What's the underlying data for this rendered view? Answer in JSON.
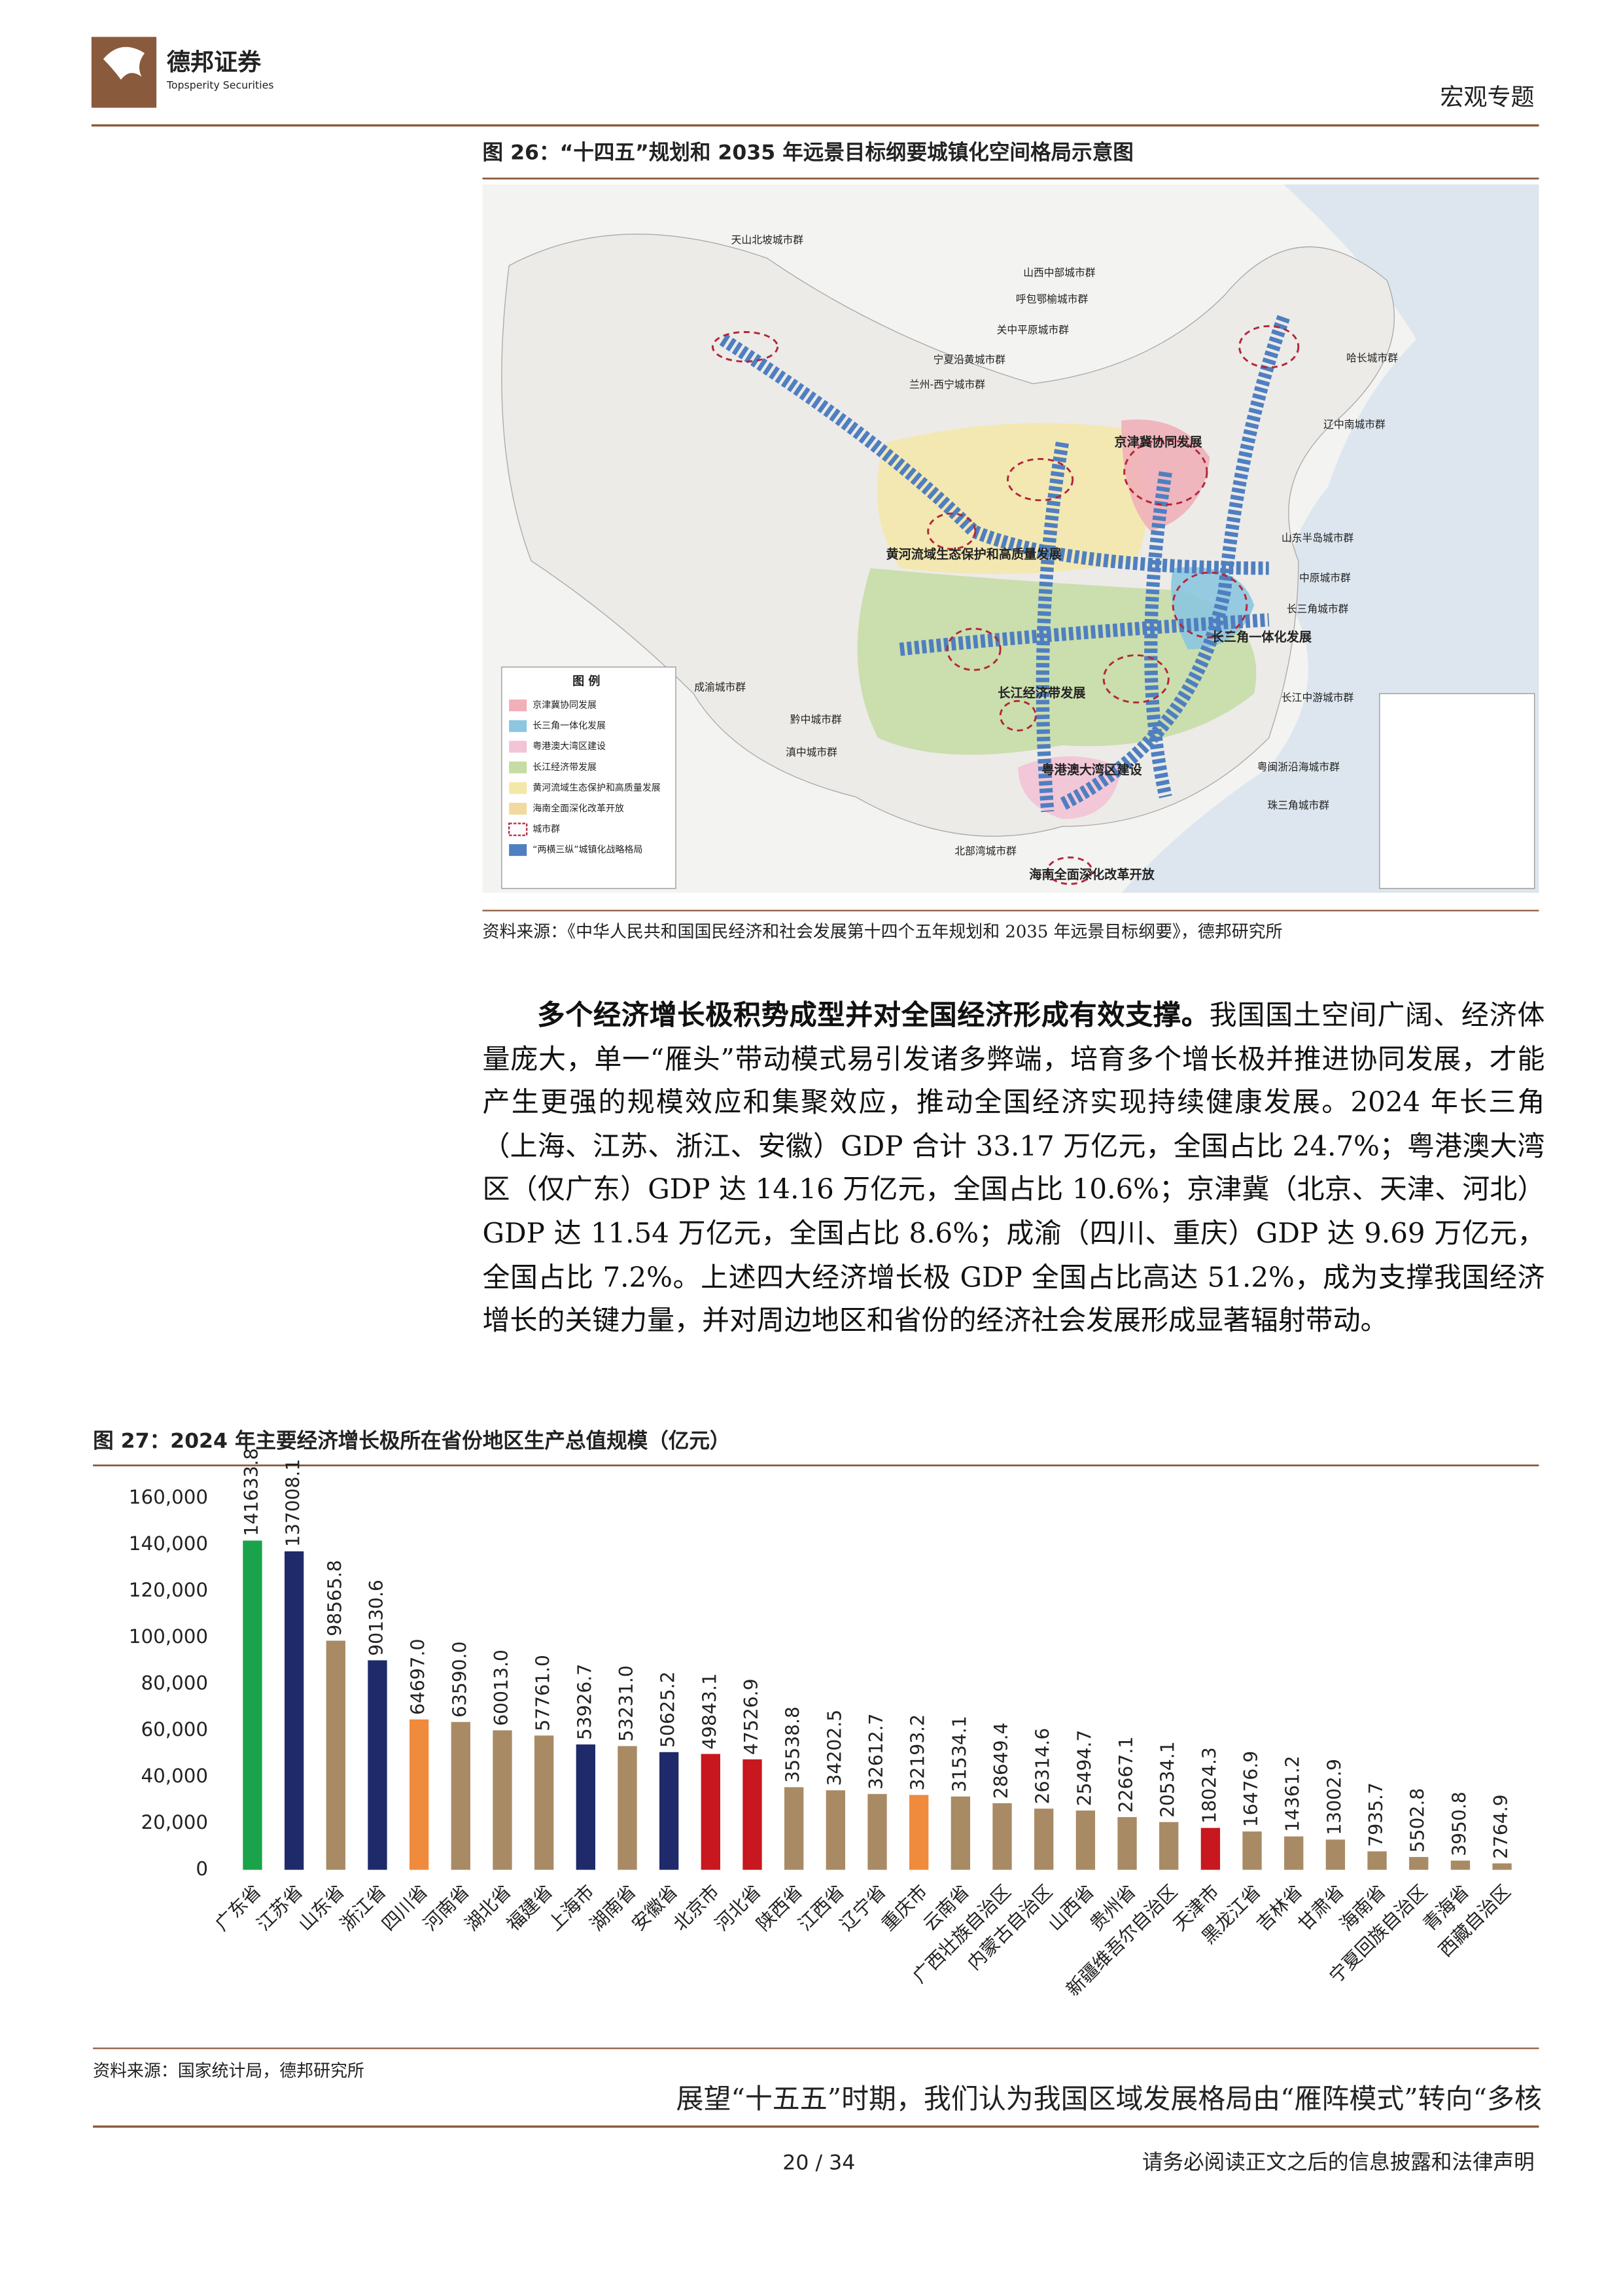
{
  "header": {
    "logo_name": "德邦证券",
    "logo_en": "Topsperity Securities",
    "section": "宏观专题"
  },
  "figure26": {
    "title": "图 26：“十四五”规划和 2035 年远景目标纲要城镇化空间格局示意图",
    "map_labels": [
      "天山北坡城市群",
      "山西中部城市群",
      "呼包鄂榆城市群",
      "关中平原城市群",
      "宁夏沿黄城市群",
      "兰州-西宁城市群",
      "哈长城市群",
      "辽中南城市群",
      "京津冀协同发展",
      "黄河流域生态保护和高质量发展",
      "山东半岛城市群",
      "中原城市群",
      "长三角城市群",
      "长三角一体化发展",
      "成渝城市群",
      "长江经济带发展",
      "长江中游城市群",
      "黔中城市群",
      "滇中城市群",
      "粤港澳大湾区建设",
      "粤闽浙沿海城市群",
      "珠三角城市群",
      "北部湾城市群",
      "海南全面深化改革开放"
    ],
    "legend_title": "图 例",
    "legend_items": [
      "京津冀协同发展",
      "长三角一体化发展",
      "粤港澳大湾区建设",
      "长江经济带发展",
      "黄河流域生态保护和高质量发展",
      "海南全面深化改革开放",
      "城市群",
      "“两横三纵”城镇化战略格局"
    ],
    "source": "资料来源：《中华人民共和国国民经济和社会发展第十四个五年规划和 2035 年远景目标纲要》，德邦研究所"
  },
  "paragraph": {
    "lead": "多个经济增长极积势成型并对全国经济形成有效支撑。",
    "body": "我国国土空间广阔、经济体量庞大，单一“雁头”带动模式易引发诸多弊端，培育多个增长极并推进协同发展，才能产生更强的规模效应和集聚效应，推动全国经济实现持续健康发展。2024 年长三角（上海、江苏、浙江、安徽）GDP 合计 33.17 万亿元，全国占比 24.7%；粤港澳大湾区（仅广东）GDP 达 14.16 万亿元，全国占比 10.6%；京津冀（北京、天津、河北）GDP 达 11.54 万亿元，全国占比 8.6%；成渝（四川、重庆）GDP 达 9.69 万亿元，全国占比 7.2%。上述四大经济增长极 GDP 全国占比高达 51.2%，成为支撑我国经济增长的关键力量，并对周边地区和省份的经济社会发展形成显著辐射带动。"
  },
  "chart_data": {
    "type": "bar",
    "title": "图 27：2024 年主要经济增长极所在省份地区生产总值规模（亿元）",
    "categories": [
      "广东省",
      "江苏省",
      "山东省",
      "浙江省",
      "四川省",
      "河南省",
      "湖北省",
      "福建省",
      "上海市",
      "湖南省",
      "安徽省",
      "北京市",
      "河北省",
      "陕西省",
      "江西省",
      "辽宁省",
      "重庆市",
      "云南省",
      "广西壮族自治区",
      "内蒙古自治区",
      "山西省",
      "贵州省",
      "新疆维吾尔自治区",
      "天津市",
      "黑龙江省",
      "吉林省",
      "甘肃省",
      "海南省",
      "宁夏回族自治区",
      "青海省",
      "西藏自治区"
    ],
    "values": [
      141633.8,
      137008.1,
      98565.8,
      90130.6,
      64697.0,
      63590.0,
      60013.0,
      57761.0,
      53926.7,
      53231.0,
      50625.2,
      49843.1,
      47526.9,
      35538.8,
      34202.5,
      32612.7,
      32193.2,
      31534.1,
      28649.4,
      26314.6,
      25494.7,
      22667.1,
      20534.1,
      18024.3,
      16476.9,
      14361.2,
      13002.9,
      7935.7,
      5502.8,
      3950.8,
      2764.9
    ],
    "value_labels": [
      "141633.8",
      "137008.1",
      "98565.8",
      "90130.6",
      "64697.0",
      "63590.0",
      "60013.0",
      "57761.0",
      "53926.7",
      "53231.0",
      "50625.2",
      "49843.1",
      "47526.9",
      "35538.8",
      "34202.5",
      "32612.7",
      "32193.2",
      "31534.1",
      "28649.4",
      "26314.6",
      "25494.7",
      "22667.1",
      "20534.1",
      "18024.3",
      "16476.9",
      "14361.2",
      "13002.9",
      "7935.7",
      "5502.8",
      "3950.8",
      "2764.9"
    ],
    "colors": [
      "#1aa34a",
      "#1f2a6b",
      "#a88a64",
      "#1f2a6b",
      "#f08a3c",
      "#a88a64",
      "#a88a64",
      "#a88a64",
      "#1f2a6b",
      "#a88a64",
      "#1f2a6b",
      "#c8171e",
      "#c8171e",
      "#a88a64",
      "#a88a64",
      "#a88a64",
      "#f08a3c",
      "#a88a64",
      "#a88a64",
      "#a88a64",
      "#a88a64",
      "#a88a64",
      "#a88a64",
      "#c8171e",
      "#a88a64",
      "#a88a64",
      "#a88a64",
      "#a88a64",
      "#a88a64",
      "#a88a64",
      "#a88a64"
    ],
    "ylim": [
      0,
      160000
    ],
    "yticks": [
      0,
      {
        "value": 20000,
        "label": "20,000"
      },
      {
        "value": 40000,
        "label": "40,000"
      },
      {
        "value": 60000,
        "label": "60,000"
      },
      {
        "value": 80000,
        "label": "80,000"
      },
      {
        "value": 100000,
        "label": "100,000"
      },
      {
        "value": 120000,
        "label": "120,000"
      },
      {
        "value": 140000,
        "label": "140,000"
      },
      {
        "value": 160000,
        "label": "160,000"
      }
    ],
    "source": "资料来源：国家统计局，德邦研究所"
  },
  "closing_text": "展望“十五五”时期，我们认为我国区域发展格局由“雁阵模式”转向“多核",
  "footer": {
    "page": "20 / 34",
    "disclaimer": "请务必阅读正文之后的信息披露和法律声明"
  }
}
